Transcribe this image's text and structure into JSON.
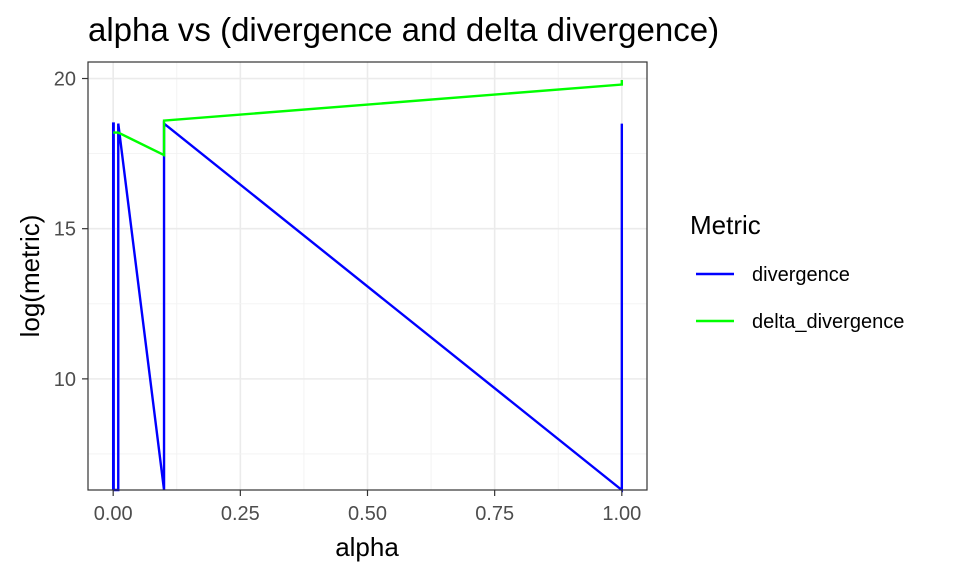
{
  "chart_data": {
    "type": "line",
    "title": "alpha vs (divergence and delta divergence)",
    "xlabel": "alpha",
    "ylabel": "log(metric)",
    "xlim": [
      -0.0495,
      1.0495
    ],
    "ylim": [
      6.3,
      20.55
    ],
    "x_ticks": [
      0,
      0.25,
      0.5,
      0.75,
      1.0
    ],
    "x_tick_labels": [
      "0.00",
      "0.25",
      "0.50",
      "0.75",
      "1.00"
    ],
    "y_ticks": [
      10,
      15,
      20
    ],
    "y_tick_labels": [
      "10",
      "15",
      "20"
    ],
    "grid": true,
    "legend": {
      "title": "Metric",
      "placement": "right",
      "entries": [
        "divergence",
        "delta_divergence"
      ]
    },
    "series": [
      {
        "name": "divergence",
        "color": "#0000ff",
        "points": [
          [
            0.0,
            6.3
          ],
          [
            0.0,
            18.5
          ],
          [
            0.001,
            18.5
          ],
          [
            0.001,
            6.3
          ],
          [
            0.01,
            6.3
          ],
          [
            0.01,
            18.5
          ],
          [
            0.1,
            6.3
          ],
          [
            0.1,
            18.5
          ],
          [
            1.0,
            6.3
          ],
          [
            1.0,
            18.5
          ]
        ]
      },
      {
        "name": "delta_divergence",
        "color": "#00ff00",
        "points": [
          [
            0.0,
            18.2
          ],
          [
            0.001,
            18.2
          ],
          [
            0.01,
            18.2
          ],
          [
            0.1,
            17.45
          ],
          [
            0.1,
            18.6
          ],
          [
            1.0,
            19.8
          ],
          [
            1.0,
            19.95
          ]
        ]
      }
    ]
  }
}
